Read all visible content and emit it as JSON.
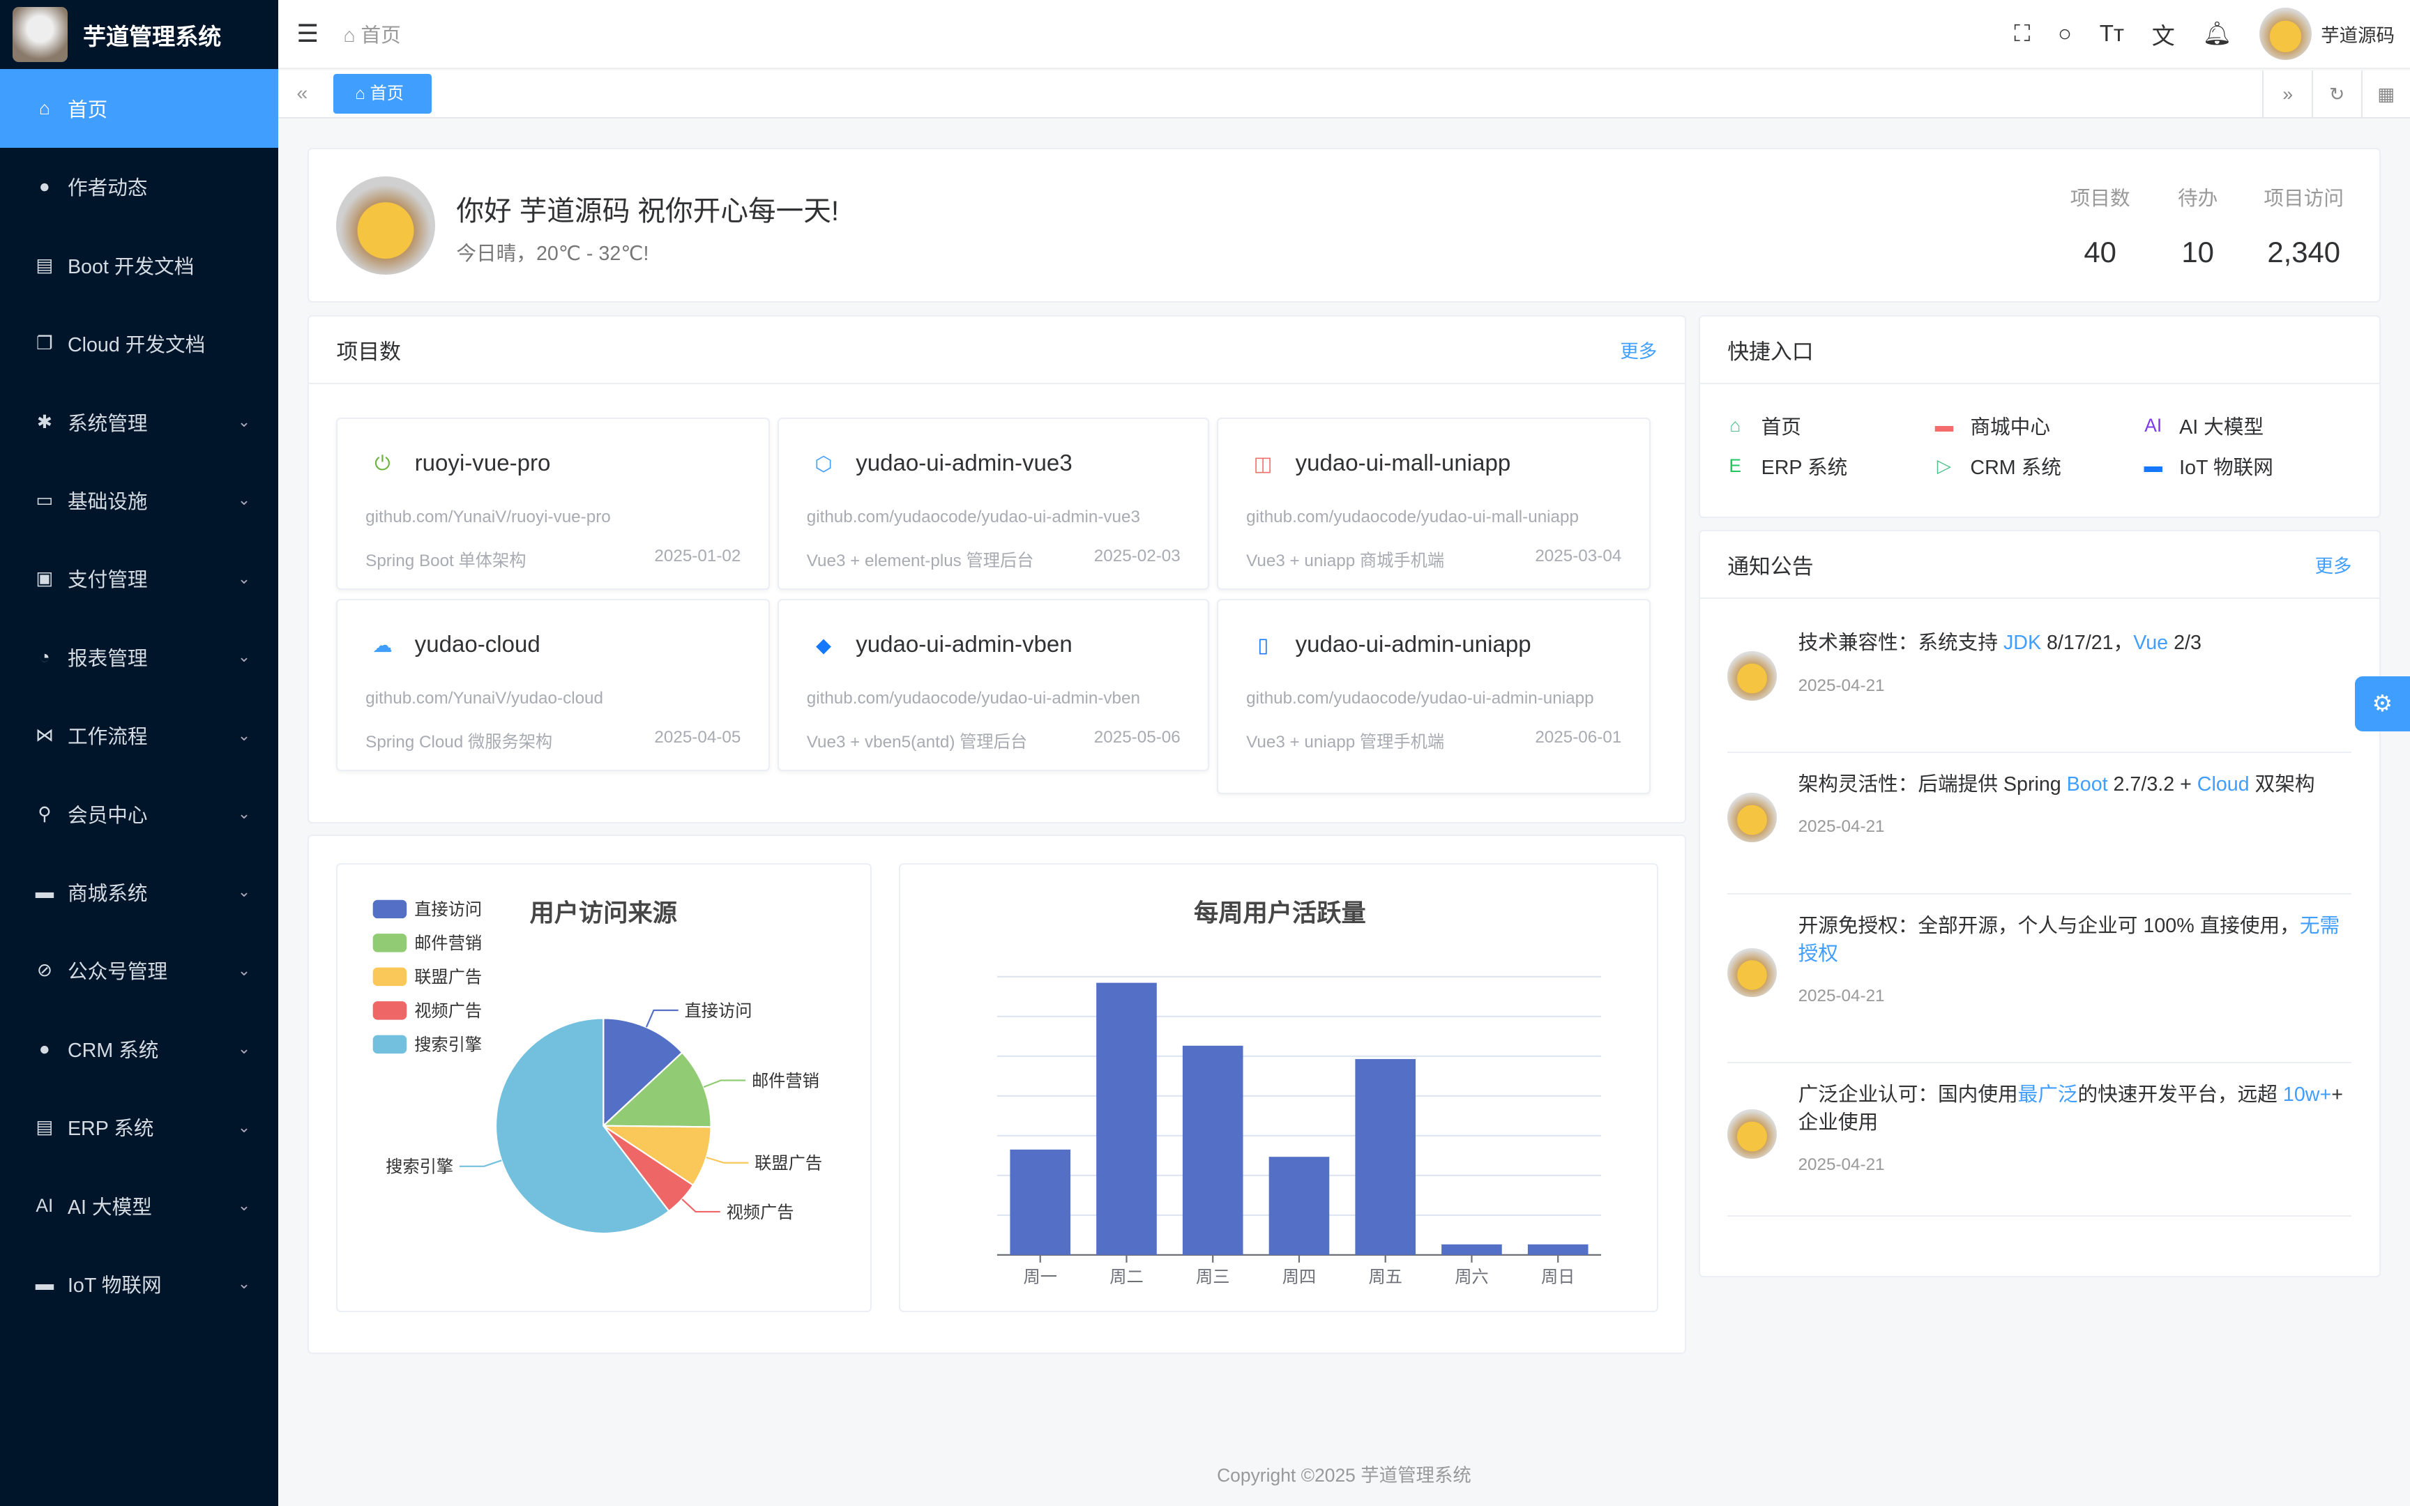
{
  "app": {
    "title": "芋道管理系统",
    "user": "芋道源码"
  },
  "sidebar": {
    "items": [
      {
        "label": "首页",
        "icon": "home-icon",
        "active": true
      },
      {
        "label": "作者动态",
        "icon": "user-icon"
      },
      {
        "label": "Boot 开发文档",
        "icon": "document-icon"
      },
      {
        "label": "Cloud 开发文档",
        "icon": "documents-icon"
      },
      {
        "label": "系统管理",
        "icon": "gear-icon",
        "sub": true
      },
      {
        "label": "基础设施",
        "icon": "monitor-icon",
        "sub": true
      },
      {
        "label": "支付管理",
        "icon": "wallet-icon",
        "sub": true
      },
      {
        "label": "报表管理",
        "icon": "pie-icon",
        "sub": true
      },
      {
        "label": "工作流程",
        "icon": "workflow-icon",
        "sub": true
      },
      {
        "label": "会员中心",
        "icon": "bike-icon",
        "sub": true
      },
      {
        "label": "商城系统",
        "icon": "shop-icon",
        "sub": true
      },
      {
        "label": "公众号管理",
        "icon": "compass-icon",
        "sub": true
      },
      {
        "label": "CRM 系统",
        "icon": "user-icon",
        "sub": true
      },
      {
        "label": "ERP 系统",
        "icon": "store-icon",
        "sub": true
      },
      {
        "label": "AI 大模型",
        "icon": "ai-icon",
        "sub": true
      },
      {
        "label": "IoT 物联网",
        "icon": "car-icon",
        "sub": true
      }
    ]
  },
  "header": {
    "breadcrumb": "首页",
    "tab": "首页"
  },
  "welcome": {
    "greeting": "你好 芋道源码 祝你开心每一天!",
    "weather": "今日晴，20℃ - 32℃!",
    "stats": [
      {
        "label": "项目数",
        "value": "40"
      },
      {
        "label": "待办",
        "value": "10"
      },
      {
        "label": "项目访问",
        "value": "2,340"
      }
    ]
  },
  "projects": {
    "title": "项目数",
    "more": "更多",
    "items": [
      {
        "name": "ruoyi-vue-pro",
        "url": "github.com/YunaiV/ruoyi-vue-pro",
        "desc": "Spring Boot 单体架构",
        "date": "2025-01-02",
        "icon": "spring-boot-icon",
        "color": "#6db33f"
      },
      {
        "name": "yudao-ui-admin-vue3",
        "url": "github.com/yudaocode/yudao-ui-admin-vue3",
        "desc": "Vue3 + element-plus 管理后台",
        "date": "2025-02-03",
        "icon": "element-plus-icon",
        "color": "#409eff"
      },
      {
        "name": "yudao-ui-mall-uniapp",
        "url": "github.com/yudaocode/yudao-ui-mall-uniapp",
        "desc": "Vue3 + uniapp 商城手机端",
        "date": "2025-03-04",
        "icon": "shopping-bag-icon",
        "color": "#f56c6c"
      },
      {
        "name": "yudao-cloud",
        "url": "github.com/YunaiV/yudao-cloud",
        "desc": "Spring Cloud 微服务架构",
        "date": "2025-04-05",
        "icon": "cloud-icon",
        "color": "#409eff"
      },
      {
        "name": "yudao-ui-admin-vben",
        "url": "github.com/yudaocode/yudao-ui-admin-vben",
        "desc": "Vue3 + vben5(antd) 管理后台",
        "date": "2025-05-06",
        "icon": "vben-icon",
        "color": "#1677ff"
      },
      {
        "name": "yudao-ui-admin-uniapp",
        "url": "github.com/yudaocode/yudao-ui-admin-uniapp",
        "desc": "Vue3 + uniapp 管理手机端",
        "date": "2025-06-01",
        "icon": "mobile-icon",
        "color": "#1677ff"
      }
    ]
  },
  "quick": {
    "title": "快捷入口",
    "items": [
      {
        "label": "首页",
        "icon": "home-icon",
        "color": "#4fc08d"
      },
      {
        "label": "商城中心",
        "icon": "shop-icon",
        "color": "#f56c6c"
      },
      {
        "label": "AI 大模型",
        "icon": "ai-icon",
        "color": "#7c3aed"
      },
      {
        "label": "ERP 系统",
        "icon": "erp-icon",
        "color": "#22c55e"
      },
      {
        "label": "CRM 系统",
        "icon": "crm-icon",
        "color": "#4fc08d"
      },
      {
        "label": "IoT 物联网",
        "icon": "car-icon",
        "color": "#1677ff"
      }
    ]
  },
  "notices": {
    "title": "通知公告",
    "more": "更多",
    "items": [
      {
        "parts": [
          {
            "t": "技术兼容性：系统支持 "
          },
          {
            "t": "JDK",
            "link": true
          },
          {
            "t": " 8/17/21，"
          },
          {
            "t": "Vue",
            "link": true
          },
          {
            "t": " 2/3"
          }
        ],
        "date": "2025-04-21"
      },
      {
        "parts": [
          {
            "t": "架构灵活性：后端提供 Spring "
          },
          {
            "t": "Boot",
            "link": true
          },
          {
            "t": " 2.7/3.2 + "
          },
          {
            "t": "Cloud",
            "link": true
          },
          {
            "t": " 双架构"
          }
        ],
        "date": "2025-04-21"
      },
      {
        "parts": [
          {
            "t": "开源免授权：全部开源，个人与企业可 100% 直接使用，"
          },
          {
            "t": "无需授权",
            "link": true
          }
        ],
        "date": "2025-04-21"
      },
      {
        "parts": [
          {
            "t": "广泛企业认可：国内使用"
          },
          {
            "t": "最广泛",
            "link": true
          },
          {
            "t": "的快速开发平台，远超 "
          },
          {
            "t": "10w+",
            "link": true
          },
          {
            "t": "+ 企业使用"
          }
        ],
        "date": "2025-04-21"
      }
    ]
  },
  "chart_data": [
    {
      "type": "pie",
      "title": "用户访问来源",
      "legend": "top-left",
      "slices": [
        {
          "name": "直接访问",
          "value": 335,
          "color": "#5470c6"
        },
        {
          "name": "邮件营销",
          "value": 310,
          "color": "#91cc75"
        },
        {
          "name": "联盟广告",
          "value": 234,
          "color": "#fac858"
        },
        {
          "name": "视频广告",
          "value": 135,
          "color": "#ee6666"
        },
        {
          "name": "搜索引擎",
          "value": 1548,
          "color": "#73c0de"
        }
      ]
    },
    {
      "type": "bar",
      "title": "每周用户活跃量",
      "categories": [
        "周一",
        "周二",
        "周三",
        "周四",
        "周五",
        "周六",
        "周日"
      ],
      "values": [
        13253,
        34235,
        26321,
        12340,
        24643,
        1322,
        1324
      ],
      "ylim": [
        0,
        35000
      ],
      "yticks": [
        0,
        5000,
        10000,
        15000,
        20000,
        25000,
        30000,
        35000
      ],
      "color": "#5470c6",
      "grid": true
    }
  ],
  "footer": "Copyright ©2025 芋道管理系统"
}
